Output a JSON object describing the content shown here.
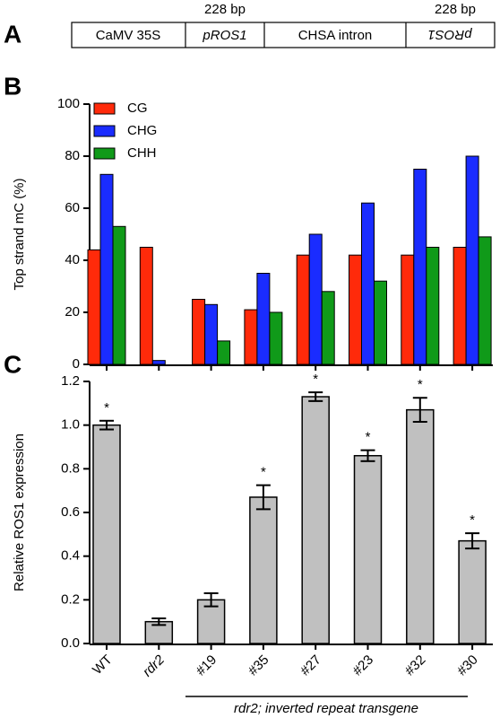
{
  "panel_labels": [
    "A",
    "B",
    "C"
  ],
  "construct": {
    "segments": [
      "CaMV 35S",
      "pROS1",
      "CHSA intron",
      "pROS1"
    ],
    "annotations": [
      "228 bp",
      "228 bp"
    ]
  },
  "chart_data": [
    {
      "type": "bar",
      "ylabel": "Top strand mC (%)",
      "ylim": [
        0,
        100
      ],
      "yticks": [
        0,
        20,
        40,
        60,
        80,
        100
      ],
      "series": [
        {
          "name": "CG",
          "color": "#ff2a0a",
          "values": [
            44,
            45,
            25,
            21,
            42,
            42,
            42,
            45
          ]
        },
        {
          "name": "CHG",
          "color": "#1a2cff",
          "values": [
            73,
            1.5,
            23,
            35,
            50,
            62,
            75,
            80
          ]
        },
        {
          "name": "CHH",
          "color": "#109a19",
          "values": [
            53,
            0,
            9,
            20,
            28,
            32,
            45,
            49
          ]
        }
      ],
      "legend": "top-left"
    },
    {
      "type": "bar",
      "ylabel": "Relative ROS1 expression",
      "ylim": [
        0,
        1.2
      ],
      "yticks": [
        {
          "value": 0,
          "label": "0.0"
        },
        0.2,
        0.4,
        0.6,
        0.8,
        {
          "value": 1,
          "label": "1.0"
        },
        1.2
      ],
      "categories": [
        "WT",
        "rdr2",
        "#19",
        "#35",
        "#27",
        "#23",
        "#32",
        "#30"
      ],
      "values": [
        1.0,
        0.1,
        0.2,
        0.67,
        1.13,
        0.86,
        1.07,
        0.47
      ],
      "errors": [
        0.02,
        0.015,
        0.03,
        0.055,
        0.02,
        0.025,
        0.055,
        0.035
      ],
      "annotations": [
        "*",
        null,
        null,
        "*",
        "*",
        "*",
        "*",
        "*"
      ],
      "color": "#c0c0c0",
      "group_label": "rdr2; inverted repeat transgene"
    }
  ]
}
